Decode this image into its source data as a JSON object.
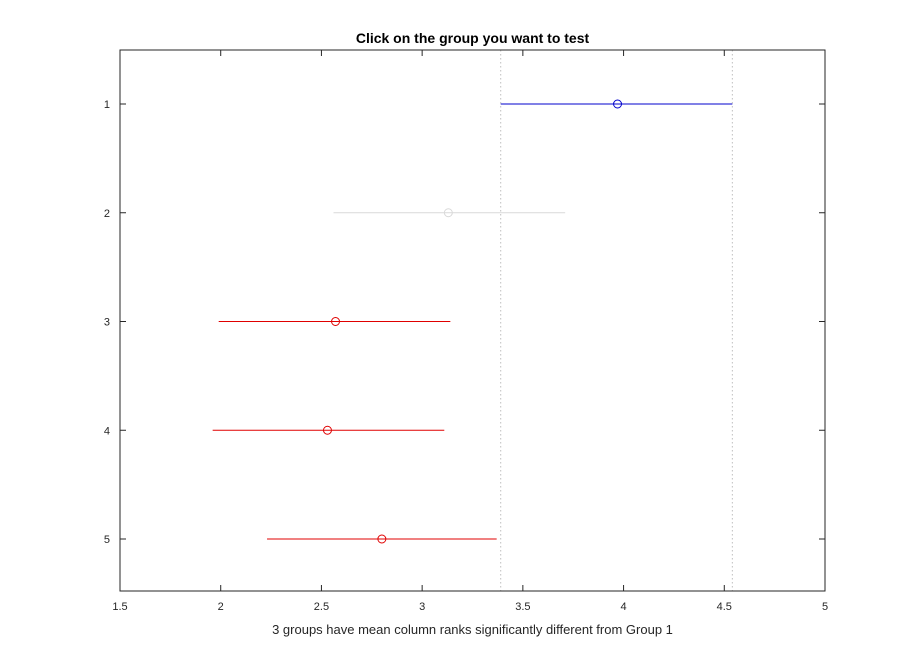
{
  "chart_data": {
    "type": "multcompare-interval",
    "title": "Click on the group you want to test",
    "xlabel": "3 groups have mean column ranks significantly different from Group 1",
    "ylabel": "",
    "xlim": [
      1.5,
      5
    ],
    "x_ticks": [
      "1.5",
      "2",
      "2.5",
      "3",
      "3.5",
      "4",
      "4.5",
      "5"
    ],
    "y_ticks": [
      "1",
      "2",
      "3",
      "4",
      "5"
    ],
    "selected_group": "1",
    "reference_interval": [
      3.39,
      4.54
    ],
    "groups": [
      {
        "label": "1",
        "mean": 3.97,
        "low": 3.39,
        "high": 4.54,
        "status": "selected"
      },
      {
        "label": "2",
        "mean": 3.13,
        "low": 2.56,
        "high": 3.71,
        "status": "not-significant"
      },
      {
        "label": "3",
        "mean": 2.57,
        "low": 1.99,
        "high": 3.14,
        "status": "significant"
      },
      {
        "label": "4",
        "mean": 2.53,
        "low": 1.96,
        "high": 3.11,
        "status": "significant"
      },
      {
        "label": "5",
        "mean": 2.8,
        "low": 2.23,
        "high": 3.37,
        "status": "significant"
      }
    ],
    "colors": {
      "selected": "#0000cc",
      "not-significant": "#d9d9d9",
      "significant": "#e00000",
      "axis": "#262626",
      "reference-line": "#bfbfbf"
    }
  }
}
